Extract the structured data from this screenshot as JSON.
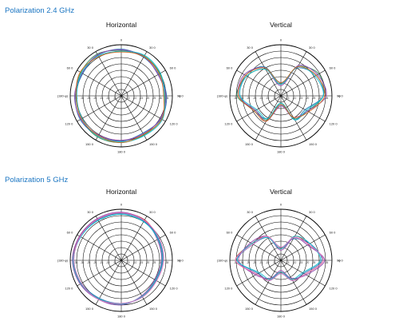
{
  "sections": [
    {
      "title": "Polarization 2.4 GHz"
    },
    {
      "title": "Polarization 5 GHz"
    }
  ],
  "chart_data": [
    {
      "type": "polar",
      "section": "Polarization 2.4 GHz",
      "title": "Horizontal",
      "angle_labels": [
        "0",
        "30 0",
        "60 0",
        "90 0",
        "120 0",
        "150 0",
        "180 0",
        "150 0",
        "120 0",
        "(180-φ)",
        "60 0",
        "30 0"
      ],
      "phi_label": "φ",
      "radial_labels": [
        "0",
        "-5",
        "-10",
        "-15",
        "-20",
        "-25",
        "-30",
        "-35"
      ],
      "rlim": [
        -35,
        0
      ],
      "rings": 8,
      "colors": [
        "#2e8b57",
        "#1f77b4",
        "#8e44ad",
        "#17becf",
        "#d2691e"
      ],
      "series": [
        {
          "values": [
            -4.0,
            -3.5,
            -4.5,
            -5.0,
            -3.0,
            -4.0,
            -3.0,
            -2.5,
            -3.5,
            -4.0,
            -3.0,
            -2.0
          ]
        },
        {
          "values": [
            -3.0,
            -4.5,
            -5.5,
            -4.0,
            -3.5,
            -5.5,
            -4.0,
            -3.5,
            -2.5,
            -3.5,
            -4.5,
            -3.0
          ]
        },
        {
          "values": [
            -3.5,
            -4.0,
            -6.0,
            -4.5,
            -4.0,
            -5.0,
            -4.5,
            -4.0,
            -3.0,
            -3.0,
            -4.0,
            -2.5
          ]
        },
        {
          "values": [
            -4.5,
            -3.0,
            -4.0,
            -5.5,
            -2.5,
            -3.5,
            -3.5,
            -3.0,
            -4.0,
            -4.5,
            -3.5,
            -3.5
          ]
        },
        {
          "values": [
            -5.0,
            -4.0,
            -5.0,
            -6.0,
            -3.0,
            -4.5,
            -3.0,
            -3.5,
            -3.5,
            -4.0,
            -2.5,
            -4.0
          ]
        }
      ]
    },
    {
      "type": "polar",
      "section": "Polarization 2.4 GHz",
      "title": "Vertical",
      "angle_labels": [
        "0",
        "30 0",
        "60 0",
        "90 0",
        "120 0",
        "150 0",
        "180 0",
        "150 0",
        "120 0",
        "(180-φ)",
        "60 0",
        "30 0"
      ],
      "phi_label": "φ",
      "radial_labels": [
        "0",
        "-5",
        "-10",
        "-15",
        "-20",
        "-25",
        "-30",
        "-35"
      ],
      "rlim": [
        -35,
        0
      ],
      "rings": 8,
      "colors": [
        "#2e8b57",
        "#1f77b4",
        "#8e44ad",
        "#17becf",
        "#d2691e"
      ],
      "series": [
        {
          "values": [
            -27,
            -12,
            -5,
            -6,
            -14,
            -17,
            -30,
            -16,
            -15,
            -5,
            -8,
            -14
          ]
        },
        {
          "values": [
            -26,
            -13,
            -7,
            -6,
            -16,
            -16,
            -29,
            -17,
            -14,
            -7,
            -7,
            -12
          ]
        },
        {
          "values": [
            -28,
            -11,
            -6,
            -4,
            -14,
            -18,
            -28,
            -15,
            -15,
            -6,
            -6,
            -13
          ]
        },
        {
          "values": [
            -27,
            -12,
            -8,
            -6,
            -15,
            -16,
            -30,
            -17,
            -16,
            -7,
            -8,
            -14
          ]
        },
        {
          "values": [
            -26,
            -12,
            -7,
            -5,
            -13,
            -18,
            -29,
            -15,
            -14,
            -6,
            -7,
            -13
          ]
        }
      ]
    },
    {
      "type": "polar",
      "section": "Polarization 5 GHz",
      "title": "Horizontal",
      "angle_labels": [
        "0",
        "30 0",
        "60 0",
        "90 0",
        "120 0",
        "150 0",
        "180 0",
        "150 0",
        "120 0",
        "(180-φ)",
        "60 0",
        "30 0"
      ],
      "phi_label": "φ",
      "radial_labels": [
        "0",
        "-5",
        "-10",
        "-15",
        "-20",
        "-25",
        "-30",
        "-35"
      ],
      "rlim": [
        -35,
        0
      ],
      "rings": 8,
      "colors": [
        "#c0392b",
        "#1f77b4",
        "#8e44ad",
        "#17becf",
        "#e377c2"
      ],
      "series": [
        {
          "values": [
            -2.5,
            -3.0,
            -6.0,
            -7.0,
            -8.0,
            -6.5,
            -5.0,
            -4.5,
            -3.0,
            -2.0,
            -2.0,
            -2.5
          ]
        },
        {
          "values": [
            -3.0,
            -4.0,
            -5.5,
            -6.5,
            -7.5,
            -6.0,
            -5.5,
            -5.0,
            -3.5,
            -2.5,
            -2.5,
            -3.0
          ]
        },
        {
          "values": [
            -2.0,
            -3.5,
            -6.5,
            -7.5,
            -8.5,
            -7.0,
            -4.5,
            -4.0,
            -2.5,
            -1.5,
            -2.0,
            -2.0
          ]
        },
        {
          "values": [
            -3.5,
            -4.5,
            -6.0,
            -7.0,
            -8.0,
            -6.5,
            -5.0,
            -4.5,
            -3.0,
            -2.0,
            -3.0,
            -3.5
          ]
        },
        {
          "values": [
            -2.5,
            -3.5,
            -5.0,
            -6.0,
            -7.0,
            -6.0,
            -5.5,
            -4.0,
            -3.5,
            -2.5,
            -2.5,
            -2.5
          ]
        }
      ]
    },
    {
      "type": "polar",
      "section": "Polarization 5 GHz",
      "title": "Vertical",
      "angle_labels": [
        "0",
        "30 0",
        "60 0",
        "90 0",
        "120 0",
        "150 0",
        "180 0",
        "150 0",
        "120 0",
        "(180-φ)",
        "60 0",
        "30 0"
      ],
      "phi_label": "φ",
      "radial_labels": [
        "0",
        "-5",
        "-10",
        "-15",
        "-20",
        "-25",
        "-30",
        "-35"
      ],
      "rlim": [
        -35,
        0
      ],
      "rings": 8,
      "colors": [
        "#c0392b",
        "#1f77b4",
        "#8e44ad",
        "#17becf",
        "#e377c2"
      ],
      "series": [
        {
          "values": [
            -27,
            -16,
            -13,
            -6,
            -16,
            -20,
            -27,
            -20,
            -16,
            -4,
            -12,
            -16
          ]
        },
        {
          "values": [
            -26,
            -18,
            -12,
            -7,
            -17,
            -19,
            -26,
            -19,
            -17,
            -5,
            -13,
            -17
          ]
        },
        {
          "values": [
            -28,
            -17,
            -14,
            -5,
            -15,
            -21,
            -28,
            -21,
            -15,
            -6,
            -11,
            -16
          ]
        },
        {
          "values": [
            -27,
            -16,
            -12,
            -8,
            -18,
            -20,
            -27,
            -20,
            -18,
            -5,
            -12,
            -17
          ]
        },
        {
          "values": [
            -26,
            -17,
            -13,
            -6,
            -16,
            -19,
            -26,
            -19,
            -16,
            -4,
            -13,
            -16
          ]
        }
      ]
    }
  ]
}
